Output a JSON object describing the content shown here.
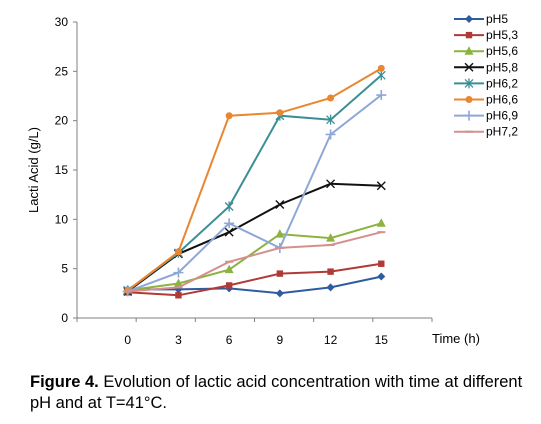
{
  "chart_data": {
    "type": "line",
    "title": "",
    "xlabel": "Time (h)",
    "ylabel": "Lacti Acid (g/L)",
    "x": [
      0,
      3,
      6,
      9,
      12,
      15
    ],
    "xticks": [
      "0",
      "3",
      "6",
      "9",
      "12",
      "15"
    ],
    "yticks": [
      "0",
      "5",
      "10",
      "15",
      "20",
      "25",
      "30"
    ],
    "ylim": [
      0,
      30
    ],
    "grid": false,
    "legend": "right",
    "series": [
      {
        "name": "pH5",
        "color": "#2e5c9e",
        "marker": "diamond",
        "values": [
          2.9,
          2.9,
          3.0,
          2.5,
          3.1,
          4.2
        ]
      },
      {
        "name": "pH5,3",
        "color": "#b03a36",
        "marker": "square",
        "values": [
          2.6,
          2.3,
          3.3,
          4.5,
          4.7,
          5.5
        ]
      },
      {
        "name": "pH5,6",
        "color": "#8cb33f",
        "marker": "triangle",
        "values": [
          2.8,
          3.5,
          4.9,
          8.5,
          8.1,
          9.6
        ]
      },
      {
        "name": "pH5,8",
        "color": "#111111",
        "marker": "x",
        "values": [
          2.7,
          6.5,
          8.7,
          11.5,
          13.6,
          13.4
        ]
      },
      {
        "name": "pH6,2",
        "color": "#3a8f96",
        "marker": "star",
        "values": [
          2.8,
          6.6,
          11.3,
          20.5,
          20.1,
          24.6
        ]
      },
      {
        "name": "pH6,6",
        "color": "#e8872f",
        "marker": "circle",
        "values": [
          2.8,
          6.7,
          20.5,
          20.8,
          22.3,
          25.3
        ]
      },
      {
        "name": "pH6,9",
        "color": "#8fa7d6",
        "marker": "plus",
        "values": [
          2.7,
          4.6,
          9.6,
          7.1,
          18.6,
          22.6
        ]
      },
      {
        "name": "pH7,2",
        "color": "#d4908f",
        "marker": "dash",
        "values": [
          2.7,
          3.1,
          5.7,
          7.1,
          7.4,
          8.7
        ]
      }
    ]
  },
  "caption": {
    "label": "Figure 4.",
    "text": " Evolution of lactic acid concentration with time at different pH and at T=41°C."
  }
}
